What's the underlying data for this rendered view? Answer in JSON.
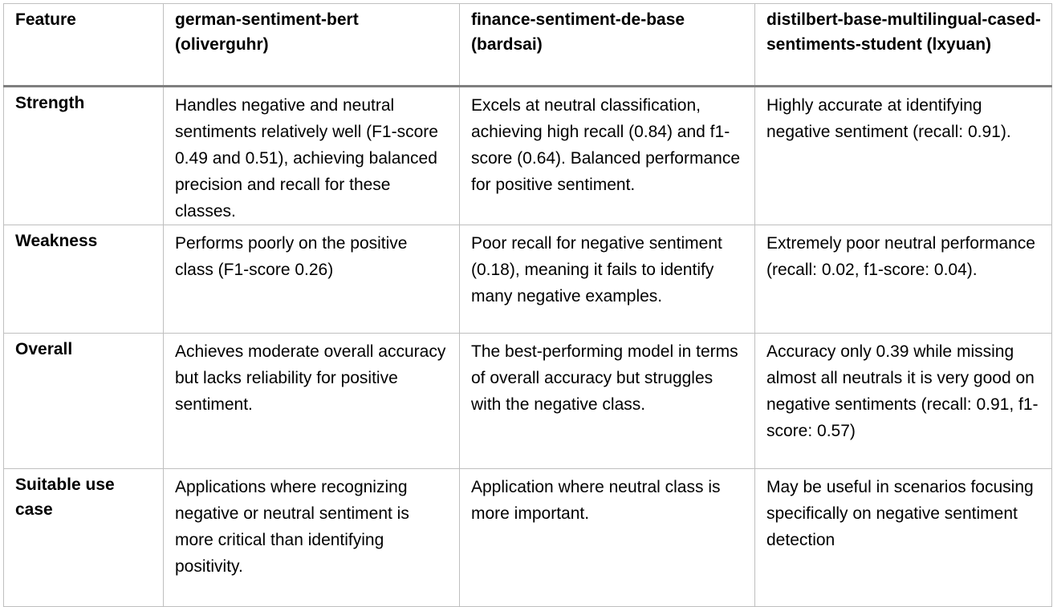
{
  "table": {
    "headers": [
      "Feature",
      "german-sentiment-bert (oliverguhr)",
      "finance-sentiment-de-base (bardsai)",
      "distilbert-base-multilingual-cased-sentiments-student (lxyuan)"
    ],
    "rows": [
      {
        "feature": "Strength",
        "cells": [
          "Handles negative and neutral sentiments relatively well (F1-score 0.49 and 0.51), achieving balanced precision and recall for these classes.",
          "Excels at neutral classification, achieving high recall (0.84) and f1-score (0.64). Balanced performance for positive sentiment.",
          "Highly accurate at identifying negative sentiment (recall: 0.91)."
        ]
      },
      {
        "feature": "Weakness",
        "cells": [
          "Performs poorly on the positive class (F1-score 0.26)",
          "Poor recall for negative sentiment (0.18), meaning it fails to identify many negative examples.",
          "Extremely poor neutral performance (recall: 0.02, f1-score: 0.04)."
        ]
      },
      {
        "feature": "Overall",
        "cells": [
          "Achieves moderate overall accuracy but lacks reliability for positive sentiment.",
          "The best-performing model in terms of overall accuracy but struggles with the negative class.",
          "Accuracy only 0.39 while missing almost all neutrals it is very good on negative sentiments (recall: 0.91, f1-score: 0.57)"
        ]
      },
      {
        "feature": "Suitable use case",
        "cells": [
          "Applications where recognizing negative or neutral sentiment is more critical than identifying positivity.",
          "Application where neutral class is more important.",
          "May be useful in scenarios focusing specifically on negative sentiment detection"
        ]
      }
    ]
  },
  "colors": {
    "border": "#bfbfbf",
    "header_rule": "#7f7f7f",
    "text": "#000000",
    "background": "#ffffff"
  }
}
